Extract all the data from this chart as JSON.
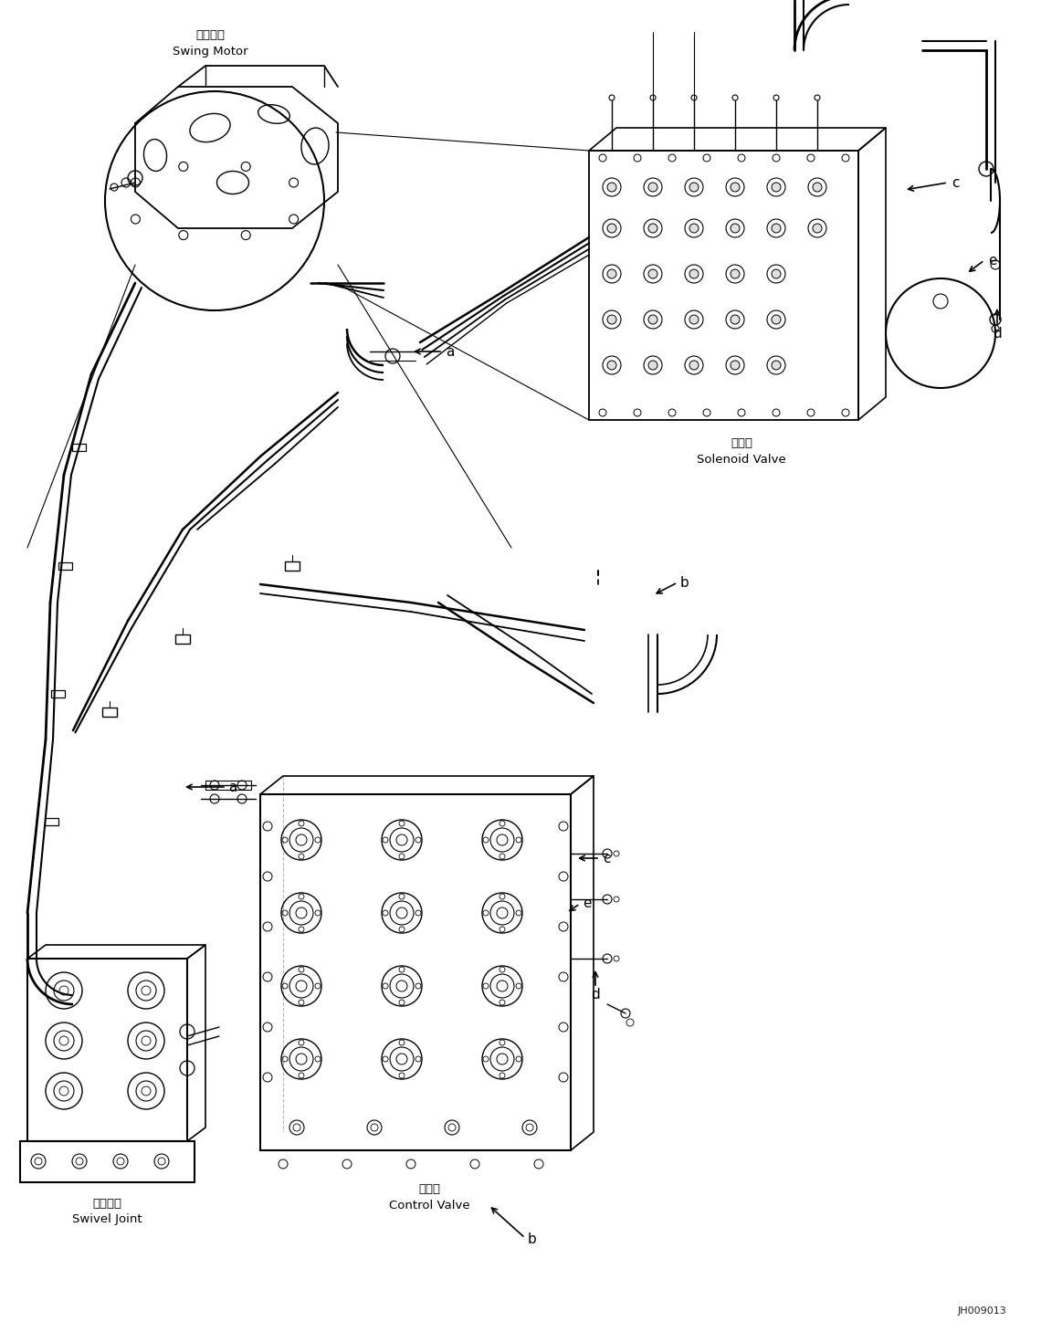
{
  "bg_color": "#ffffff",
  "fig_width": 11.4,
  "fig_height": 14.59,
  "dpi": 100,
  "labels": {
    "swing_motor_cn": "回转马达",
    "swing_motor_en": "Swing Motor",
    "solenoid_cn": "电磁阀",
    "solenoid_en": "Solenoid Valve",
    "swivel_cn": "回转接头",
    "swivel_en": "Swivel Joint",
    "control_cn": "控制阀",
    "control_en": "Control Valve",
    "part_id": "JH009013"
  },
  "font_sizes": {
    "cn": 9.5,
    "en": 9.5,
    "label_letter": 11,
    "part_id": 8
  },
  "text_color": "#000000",
  "line_color": "#000000"
}
